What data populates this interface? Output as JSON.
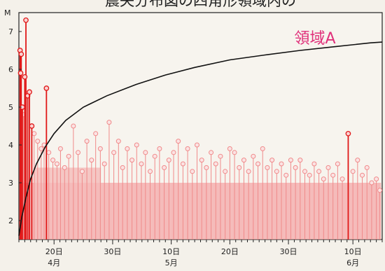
{
  "chart_data": {
    "type": "scatter",
    "title": "震央分布図の四角形領域内の",
    "ylabel": "M",
    "annotation": "領域A",
    "ylim": [
      1.5,
      7.5
    ],
    "xlim": [
      0,
      62
    ],
    "y_ticks": [
      2,
      3,
      4,
      5,
      6,
      7
    ],
    "x_ticks": [
      {
        "x": 6,
        "label": "20日",
        "month": "4月"
      },
      {
        "x": 16,
        "label": "30日",
        "month": ""
      },
      {
        "x": 26,
        "label": "10日",
        "month": "5月"
      },
      {
        "x": 36,
        "label": "20日",
        "month": ""
      },
      {
        "x": 46,
        "label": "30日",
        "month": ""
      },
      {
        "x": 57,
        "label": "10日",
        "month": "6月"
      }
    ],
    "cumulative_curve": [
      {
        "x": 0.0,
        "y": 1.6
      },
      {
        "x": 0.5,
        "y": 2.1
      },
      {
        "x": 1.2,
        "y": 2.6
      },
      {
        "x": 2.0,
        "y": 3.1
      },
      {
        "x": 3.0,
        "y": 3.5
      },
      {
        "x": 4.5,
        "y": 3.95
      },
      {
        "x": 6.0,
        "y": 4.3
      },
      {
        "x": 8.0,
        "y": 4.65
      },
      {
        "x": 11.0,
        "y": 5.0
      },
      {
        "x": 15.0,
        "y": 5.3
      },
      {
        "x": 20.0,
        "y": 5.6
      },
      {
        "x": 25.0,
        "y": 5.85
      },
      {
        "x": 30.0,
        "y": 6.05
      },
      {
        "x": 36.0,
        "y": 6.25
      },
      {
        "x": 42.0,
        "y": 6.38
      },
      {
        "x": 48.0,
        "y": 6.5
      },
      {
        "x": 54.0,
        "y": 6.6
      },
      {
        "x": 60.0,
        "y": 6.7
      },
      {
        "x": 62.0,
        "y": 6.72
      }
    ],
    "major_events": [
      {
        "x": 0.2,
        "y": 6.5
      },
      {
        "x": 0.4,
        "y": 6.4
      },
      {
        "x": 0.3,
        "y": 5.9
      },
      {
        "x": 0.6,
        "y": 5.0
      },
      {
        "x": 1.2,
        "y": 7.3
      },
      {
        "x": 1.0,
        "y": 5.8
      },
      {
        "x": 1.5,
        "y": 5.3
      },
      {
        "x": 1.8,
        "y": 5.4
      },
      {
        "x": 2.2,
        "y": 4.5
      },
      {
        "x": 4.7,
        "y": 5.5
      },
      {
        "x": 56.2,
        "y": 4.3
      }
    ],
    "minor_events": [
      {
        "x": 0.8,
        "y": 4.8
      },
      {
        "x": 2.6,
        "y": 4.3
      },
      {
        "x": 3.2,
        "y": 4.1
      },
      {
        "x": 3.8,
        "y": 3.9
      },
      {
        "x": 4.3,
        "y": 4.0
      },
      {
        "x": 5.1,
        "y": 3.8
      },
      {
        "x": 5.8,
        "y": 3.6
      },
      {
        "x": 6.5,
        "y": 3.5
      },
      {
        "x": 7.1,
        "y": 3.9
      },
      {
        "x": 7.8,
        "y": 3.4
      },
      {
        "x": 8.5,
        "y": 3.7
      },
      {
        "x": 9.3,
        "y": 4.5
      },
      {
        "x": 10.1,
        "y": 3.8
      },
      {
        "x": 10.8,
        "y": 3.3
      },
      {
        "x": 11.6,
        "y": 4.1
      },
      {
        "x": 12.4,
        "y": 3.6
      },
      {
        "x": 13.1,
        "y": 4.3
      },
      {
        "x": 13.9,
        "y": 3.9
      },
      {
        "x": 14.6,
        "y": 3.5
      },
      {
        "x": 15.4,
        "y": 4.6
      },
      {
        "x": 16.2,
        "y": 3.8
      },
      {
        "x": 17.0,
        "y": 4.1
      },
      {
        "x": 17.7,
        "y": 3.4
      },
      {
        "x": 18.5,
        "y": 3.9
      },
      {
        "x": 19.3,
        "y": 3.6
      },
      {
        "x": 20.1,
        "y": 4.0
      },
      {
        "x": 20.9,
        "y": 3.5
      },
      {
        "x": 21.6,
        "y": 3.8
      },
      {
        "x": 22.4,
        "y": 3.3
      },
      {
        "x": 23.2,
        "y": 3.7
      },
      {
        "x": 24.0,
        "y": 3.9
      },
      {
        "x": 24.8,
        "y": 3.4
      },
      {
        "x": 25.6,
        "y": 3.6
      },
      {
        "x": 26.4,
        "y": 3.8
      },
      {
        "x": 27.2,
        "y": 4.1
      },
      {
        "x": 28.0,
        "y": 3.5
      },
      {
        "x": 28.8,
        "y": 3.9
      },
      {
        "x": 29.6,
        "y": 3.3
      },
      {
        "x": 30.4,
        "y": 4.0
      },
      {
        "x": 31.2,
        "y": 3.6
      },
      {
        "x": 32.0,
        "y": 3.4
      },
      {
        "x": 32.8,
        "y": 3.8
      },
      {
        "x": 33.6,
        "y": 3.5
      },
      {
        "x": 34.4,
        "y": 3.7
      },
      {
        "x": 35.2,
        "y": 3.3
      },
      {
        "x": 36.0,
        "y": 3.9
      },
      {
        "x": 36.8,
        "y": 3.8
      },
      {
        "x": 37.6,
        "y": 3.4
      },
      {
        "x": 38.4,
        "y": 3.6
      },
      {
        "x": 39.2,
        "y": 3.3
      },
      {
        "x": 40.0,
        "y": 3.7
      },
      {
        "x": 40.8,
        "y": 3.5
      },
      {
        "x": 41.6,
        "y": 3.9
      },
      {
        "x": 42.4,
        "y": 3.4
      },
      {
        "x": 43.2,
        "y": 3.6
      },
      {
        "x": 44.0,
        "y": 3.3
      },
      {
        "x": 44.8,
        "y": 3.5
      },
      {
        "x": 45.6,
        "y": 3.2
      },
      {
        "x": 46.4,
        "y": 3.6
      },
      {
        "x": 47.2,
        "y": 3.4
      },
      {
        "x": 48.0,
        "y": 3.6
      },
      {
        "x": 48.8,
        "y": 3.3
      },
      {
        "x": 49.6,
        "y": 3.2
      },
      {
        "x": 50.4,
        "y": 3.5
      },
      {
        "x": 51.2,
        "y": 3.3
      },
      {
        "x": 52.0,
        "y": 3.1
      },
      {
        "x": 52.8,
        "y": 3.4
      },
      {
        "x": 53.6,
        "y": 3.2
      },
      {
        "x": 54.4,
        "y": 3.5
      },
      {
        "x": 55.2,
        "y": 3.1
      },
      {
        "x": 57.0,
        "y": 3.3
      },
      {
        "x": 57.8,
        "y": 3.6
      },
      {
        "x": 58.6,
        "y": 3.2
      },
      {
        "x": 59.4,
        "y": 3.4
      },
      {
        "x": 60.2,
        "y": 3.0
      },
      {
        "x": 61.0,
        "y": 3.1
      },
      {
        "x": 61.6,
        "y": 2.8
      }
    ],
    "colors": {
      "major_stem": "#e01818",
      "minor_stem": "#f08a8a",
      "dense_fill": "#f4a8a8",
      "curve": "#111111",
      "annotation": "#e0307a"
    }
  }
}
